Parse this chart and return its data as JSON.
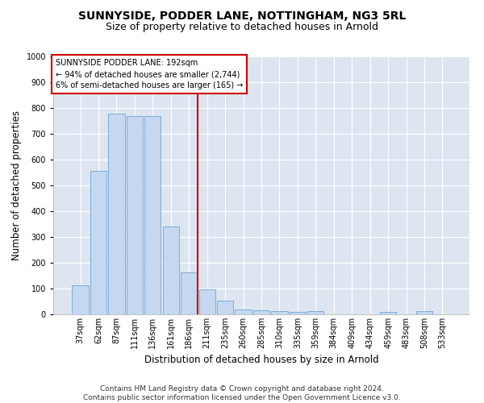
{
  "title": "SUNNYSIDE, PODDER LANE, NOTTINGHAM, NG3 5RL",
  "subtitle": "Size of property relative to detached houses in Arnold",
  "xlabel": "Distribution of detached houses by size in Arnold",
  "ylabel": "Number of detached properties",
  "categories": [
    "37sqm",
    "62sqm",
    "87sqm",
    "111sqm",
    "136sqm",
    "161sqm",
    "186sqm",
    "211sqm",
    "235sqm",
    "260sqm",
    "285sqm",
    "310sqm",
    "335sqm",
    "359sqm",
    "384sqm",
    "409sqm",
    "434sqm",
    "459sqm",
    "483sqm",
    "508sqm",
    "533sqm"
  ],
  "values": [
    113,
    557,
    778,
    770,
    768,
    342,
    163,
    97,
    53,
    20,
    15,
    14,
    10,
    11,
    0,
    0,
    0,
    10,
    0,
    11,
    0
  ],
  "bar_color": "#c5d8f0",
  "bar_edge_color": "#7aaddb",
  "vline_x": 7.0,
  "vline_color": "#cc0000",
  "annotation_text": "SUNNYSIDE PODDER LANE: 192sqm\n← 94% of detached houses are smaller (2,744)\n6% of semi-detached houses are larger (165) →",
  "annotation_box_color": "#ffffff",
  "annotation_box_edge_color": "#cc0000",
  "ylim": [
    0,
    1000
  ],
  "yticks": [
    0,
    100,
    200,
    300,
    400,
    500,
    600,
    700,
    800,
    900,
    1000
  ],
  "bg_color": "#dde6f0",
  "plot_bg_color": "#dde6f0",
  "footer_line1": "Contains HM Land Registry data © Crown copyright and database right 2024.",
  "footer_line2": "Contains public sector information licensed under the Open Government Licence v3.0.",
  "title_fontsize": 10,
  "subtitle_fontsize": 9,
  "xlabel_fontsize": 8.5,
  "ylabel_fontsize": 8.5,
  "tick_fontsize": 7,
  "footer_fontsize": 6.5
}
